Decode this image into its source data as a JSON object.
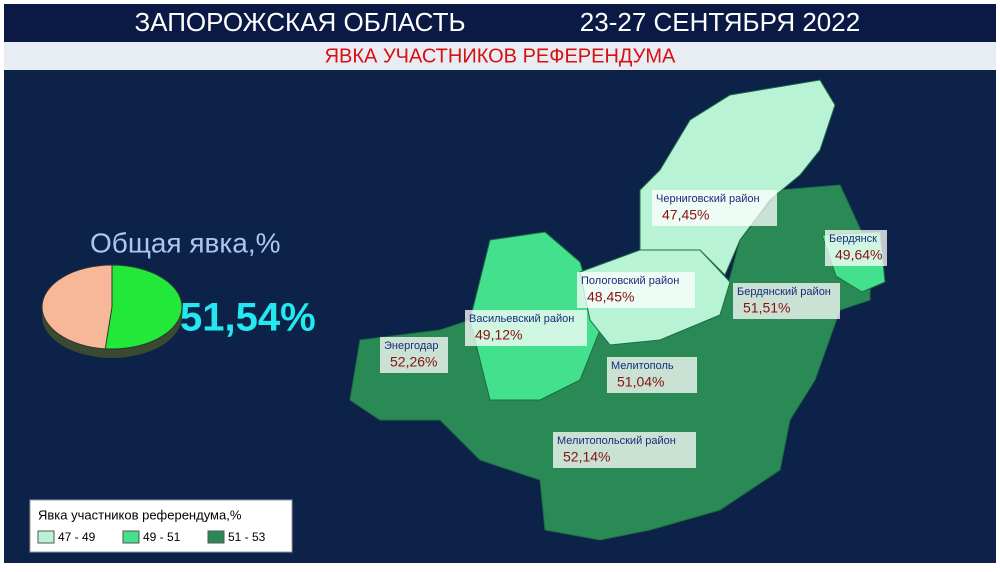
{
  "header": {
    "title": "ЗАПОРОЖСКАЯ ОБЛАСТЬ",
    "dates": "23-27 СЕНТЯБРЯ 2022",
    "subtitle": "ЯВКА УЧАСТНИКОВ РЕФЕРЕНДУМА"
  },
  "turnout": {
    "title": "Общая явка,%",
    "value": 51.54,
    "label": "51,54%",
    "color": "#22e83a",
    "rest_color": "#f7b89a"
  },
  "regions": [
    {
      "name": "Черниговский район",
      "value": "47,45%"
    },
    {
      "name": "Бердянск",
      "value": "49,64%"
    },
    {
      "name": "Пологовский район",
      "value": "48,45%"
    },
    {
      "name": "Бердянский район",
      "value": "51,51%"
    },
    {
      "name": "Васильевский район",
      "value": "49,12%"
    },
    {
      "name": "Энергодар",
      "value": "52,26%"
    },
    {
      "name": "Мелитополь",
      "value": "51,04%"
    },
    {
      "name": "Мелитопольский район",
      "value": "52,14%"
    }
  ],
  "legend": {
    "title": "Явка участников референдума,%",
    "items": [
      {
        "label": "47 - 49",
        "color": "#b9f3d6"
      },
      {
        "label": "49 - 51",
        "color": "#43e08d"
      },
      {
        "label": "51 - 53",
        "color": "#2a8a55"
      }
    ]
  }
}
